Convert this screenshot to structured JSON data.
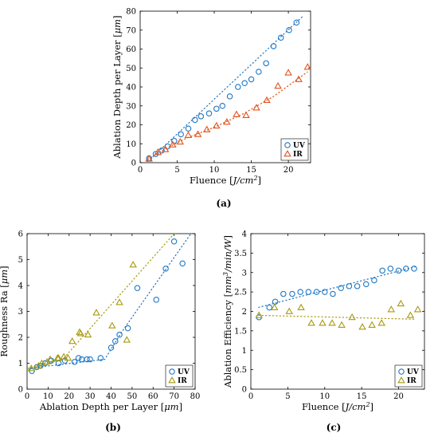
{
  "figure": {
    "captions": [
      "(a)",
      "(b)",
      "(c)"
    ]
  },
  "colors": {
    "uv": "#1f77c4",
    "ir": "#e0531c",
    "ir_c": "#b8860b"
  },
  "chart_data": [
    {
      "id": "a",
      "type": "scatter",
      "xlabel": "Fluence [J/cm²]",
      "ylabel": "Ablation Depth per Layer [μm]",
      "xlim": [
        0,
        23
      ],
      "ylim": [
        0,
        80
      ],
      "xticks": [
        0,
        5,
        10,
        15,
        20
      ],
      "yticks": [
        0,
        10,
        20,
        30,
        40,
        50,
        60,
        70,
        80
      ],
      "legend_position": "bottom-right",
      "series": [
        {
          "name": "UV",
          "marker": "circle",
          "color": "#1f77c4",
          "x": [
            1.2,
            2.1,
            2.9,
            3.7,
            4.6,
            5.5,
            6.5,
            7.4,
            8.2,
            9.3,
            10.3,
            11.1,
            12.1,
            13.2,
            14.1,
            15.0,
            16.0,
            17.0,
            18.0,
            19.0,
            20.1,
            21.1
          ],
          "y": [
            2.3,
            4.6,
            6.4,
            8.6,
            11.5,
            15.0,
            18.0,
            22.6,
            24.5,
            26.0,
            28.5,
            30.0,
            35.0,
            40.0,
            42.0,
            44.0,
            48.0,
            52.5,
            61.5,
            66.0,
            70.0,
            74.0
          ],
          "trend": {
            "x": [
              1.0,
              22.0
            ],
            "y": [
              0.5,
              77.5
            ]
          }
        },
        {
          "name": "IR",
          "marker": "triangle",
          "color": "#e0531c",
          "x": [
            1.2,
            2.4,
            3.4,
            4.4,
            5.4,
            6.5,
            7.8,
            9.0,
            10.3,
            11.7,
            13.0,
            14.3,
            15.7,
            17.1,
            18.6,
            20.0,
            21.4,
            22.6
          ],
          "y": [
            2.0,
            5.5,
            7.0,
            9.5,
            11.0,
            14.5,
            15.0,
            17.5,
            19.5,
            21.5,
            25.5,
            25.0,
            29.0,
            33.0,
            40.5,
            47.5,
            44.0,
            50.5
          ],
          "trend": {
            "x": [
              1.0,
              3.0,
              6.0,
              10.0,
              14.0,
              18.0,
              22.6
            ],
            "y": [
              1.5,
              6.5,
              12.5,
              18.7,
              26.0,
              35.0,
              48.0
            ]
          }
        }
      ]
    },
    {
      "id": "b",
      "type": "scatter",
      "xlabel": "Ablation Depth per Layer [μm]",
      "ylabel": "Roughness Ra [μm]",
      "xlim": [
        0,
        80
      ],
      "ylim": [
        0,
        6
      ],
      "xticks": [
        0,
        10,
        20,
        30,
        40,
        50,
        60,
        70,
        80
      ],
      "yticks": [
        0,
        1,
        2,
        3,
        4,
        5,
        6
      ],
      "legend_position": "bottom-right",
      "series": [
        {
          "name": "UV",
          "marker": "circle",
          "color": "#1f77c4",
          "x": [
            2.3,
            4.6,
            6.4,
            8.6,
            11.5,
            15.0,
            18.0,
            22.6,
            24.5,
            26.0,
            28.5,
            30.0,
            35.0,
            40.0,
            42.0,
            44.0,
            48.0,
            52.5,
            61.5,
            66.0,
            70.0,
            74.0
          ],
          "y": [
            0.7,
            0.85,
            0.9,
            1.0,
            1.1,
            1.0,
            1.1,
            1.05,
            1.2,
            1.15,
            1.15,
            1.15,
            1.2,
            1.6,
            1.85,
            2.1,
            2.35,
            3.9,
            3.45,
            4.65,
            5.7,
            4.85
          ],
          "trend": {
            "x": [
              0,
              37,
              45,
              78
            ],
            "y": [
              0.8,
              1.15,
              2.2,
              6.0
            ]
          }
        },
        {
          "name": "IR",
          "marker": "triangle",
          "color": "#a89a10",
          "x": [
            2.0,
            5.5,
            7.0,
            9.5,
            11.0,
            14.5,
            15.0,
            17.5,
            19.5,
            21.5,
            25.5,
            25.0,
            29.0,
            33.0,
            40.5,
            47.5,
            44.0,
            50.5
          ],
          "y": [
            0.8,
            0.9,
            1.0,
            1.05,
            1.15,
            1.2,
            1.2,
            1.25,
            1.2,
            1.85,
            2.15,
            2.2,
            2.1,
            2.95,
            2.45,
            1.9,
            3.35,
            4.8
          ],
          "trend": {
            "x": [
              0,
              17,
              70
            ],
            "y": [
              0.8,
              1.15,
              6.0
            ]
          }
        }
      ]
    },
    {
      "id": "c",
      "type": "scatter",
      "xlabel": "Fluence [J/cm²]",
      "ylabel": "Ablation Efficiency [mm³/min/W]",
      "xlim": [
        0,
        23.5
      ],
      "ylim": [
        0,
        4
      ],
      "xticks": [
        0,
        5,
        10,
        15,
        20
      ],
      "yticks": [
        0,
        0.5,
        1,
        1.5,
        2,
        2.5,
        3,
        3.5,
        4
      ],
      "legend_position": "bottom-right",
      "series": [
        {
          "name": "UV",
          "marker": "circle",
          "color": "#1f77c4",
          "x": [
            1.1,
            2.5,
            3.3,
            4.4,
            5.6,
            6.7,
            7.8,
            8.9,
            10.0,
            11.1,
            12.2,
            13.3,
            14.4,
            15.6,
            16.7,
            17.8,
            18.9,
            20.0,
            21.0,
            22.1
          ],
          "y": [
            1.85,
            2.1,
            2.25,
            2.45,
            2.45,
            2.5,
            2.5,
            2.5,
            2.5,
            2.45,
            2.6,
            2.65,
            2.65,
            2.7,
            2.8,
            3.05,
            3.1,
            3.05,
            3.1,
            3.1
          ],
          "trend": {
            "x": [
              1.0,
              22.3
            ],
            "y": [
              2.1,
              3.15
            ]
          }
        },
        {
          "name": "IR",
          "marker": "triangle",
          "color": "#a89a10",
          "x": [
            1.1,
            3.2,
            5.2,
            6.8,
            8.2,
            9.7,
            11.0,
            12.3,
            13.7,
            15.1,
            16.4,
            17.7,
            19.0,
            20.3,
            21.6,
            22.6
          ],
          "y": [
            1.9,
            2.1,
            2.0,
            2.1,
            1.7,
            1.7,
            1.7,
            1.65,
            1.85,
            1.6,
            1.65,
            1.7,
            2.05,
            2.2,
            1.9,
            2.05
          ],
          "trend": {
            "x": [
              1.0,
              22.3
            ],
            "y": [
              1.9,
              1.8
            ]
          }
        }
      ]
    }
  ]
}
